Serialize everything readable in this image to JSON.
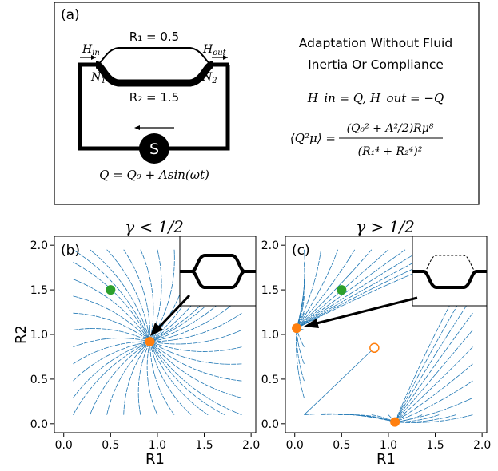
{
  "panel_a": {
    "label": "(a)",
    "r1_label": "R₁ = 0.5",
    "r2_label": "R₂ = 1.5",
    "h_in": "H",
    "h_in_sub": "in",
    "h_out": "H",
    "h_out_sub": "out",
    "n1": "N",
    "n1_sub": "1",
    "n2": "N",
    "n2_sub": "2",
    "source_symbol": "S",
    "flow_eq": "Q = Q₀ + Asin(ωt)",
    "title_line1": "Adaptation Without Fluid",
    "title_line2": "Inertia Or Compliance",
    "boundary_eq": "H_in = Q, H_out = −Q",
    "formula_lhs": "⟨Q²μ⟩ =",
    "formula_num": "(Q₀² + A²/2)Rμ⁸",
    "formula_den": "(R₁⁴ + R₂⁴)²"
  },
  "panel_b": {
    "title": "γ < 1/2",
    "label": "(b)",
    "xlabel": "R1",
    "ylabel": "R2"
  },
  "panel_c": {
    "title": "γ > 1/2",
    "label": "(c)",
    "xlabel": "R1"
  },
  "colors": {
    "stream": "#1f77b4",
    "orange": "#ff7f0e",
    "green": "#2ca02c"
  },
  "chart_data": [
    {
      "type": "scatter",
      "title": "γ < 1/2",
      "xlabel": "R1",
      "ylabel": "R2",
      "xlim": [
        -0.1,
        2.05
      ],
      "ylim": [
        -0.1,
        2.1
      ],
      "xticks": [
        "0.0",
        "0.5",
        "1.0",
        "1.5",
        "2.0"
      ],
      "yticks": [
        "0.0",
        "0.5",
        "1.0",
        "1.5",
        "2.0"
      ],
      "series": [
        {
          "marker": "green-dot",
          "x": [
            0.5
          ],
          "y": [
            1.5
          ]
        },
        {
          "marker": "orange-dot",
          "x": [
            0.92
          ],
          "y": [
            0.92
          ]
        }
      ],
      "streamlines": "converge-to-stable-point"
    },
    {
      "type": "scatter",
      "title": "γ > 1/2",
      "xlabel": "R1",
      "xlim": [
        -0.1,
        2.05
      ],
      "ylim": [
        -0.1,
        2.1
      ],
      "xticks": [
        "0.0",
        "0.5",
        "1.0",
        "1.5",
        "2.0"
      ],
      "yticks": [
        "0.0",
        "0.5",
        "1.0",
        "1.5",
        "2.0"
      ],
      "series": [
        {
          "marker": "green-dot",
          "x": [
            0.5
          ],
          "y": [
            1.5
          ]
        },
        {
          "marker": "orange-dot",
          "x": [
            0.02,
            1.07
          ],
          "y": [
            1.07,
            0.02
          ]
        },
        {
          "marker": "orange-open-circle",
          "x": [
            0.85
          ],
          "y": [
            0.85
          ]
        }
      ],
      "streamlines": "diverge-to-axes"
    }
  ]
}
